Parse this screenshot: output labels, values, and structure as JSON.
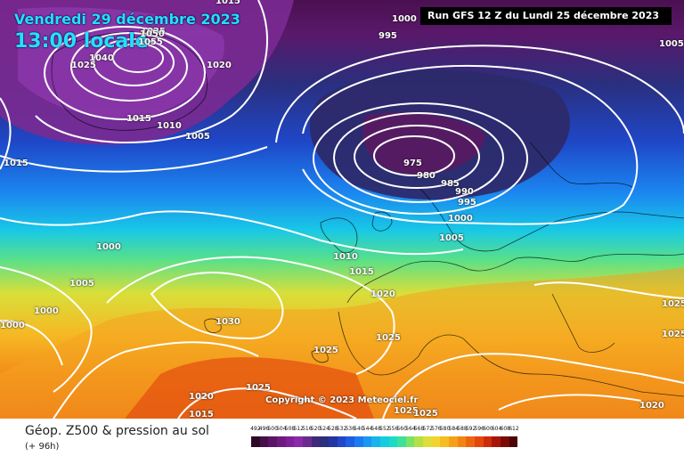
{
  "header": {
    "date": "Vendredi 29 décembre 2023",
    "time": "13:00 locale",
    "run": "Run GFS 12 Z du Lundi 25 décembre 2023"
  },
  "copyright": "Copyright © 2023 Meteociel.fr",
  "legend": {
    "title": "Géop. Z500 & pression au sol",
    "subtitle": "(+ 96h)",
    "scale_ticks": [
      "492",
      "496",
      "500",
      "504",
      "508",
      "512",
      "516",
      "520",
      "524",
      "528",
      "532",
      "536",
      "540",
      "544",
      "548",
      "552",
      "556",
      "560",
      "564",
      "568",
      "572",
      "576",
      "580",
      "584",
      "588",
      "592",
      "596",
      "600",
      "604",
      "608",
      "612"
    ],
    "scale_colors": [
      "#2d0a26",
      "#46104a",
      "#5a1566",
      "#6e1a80",
      "#7e209a",
      "#8a2aa8",
      "#6a2a8e",
      "#3e2a78",
      "#2a2f7e",
      "#2236a0",
      "#1f47c8",
      "#1d5fe0",
      "#1c7af0",
      "#1b96f2",
      "#18b4ea",
      "#16cce0",
      "#18dcc8",
      "#3ee09a",
      "#7ae266",
      "#b2e046",
      "#dedd3a",
      "#f2d42e",
      "#f6bc22",
      "#f6a01a",
      "#f28414",
      "#ec6610",
      "#e2480e",
      "#cc2c0c",
      "#a8160a",
      "#7a0a08",
      "#4a0404"
    ]
  },
  "pressure_labels": [
    {
      "name": "1015-a",
      "text": "1015"
    },
    {
      "name": "1000-top",
      "text": "1000"
    },
    {
      "name": "995-top",
      "text": "995"
    },
    {
      "name": "1005-right",
      "text": "1005"
    },
    {
      "name": "1035-a",
      "text": "1035"
    },
    {
      "name": "1040",
      "text": "1040"
    },
    {
      "name": "1050",
      "text": "1050"
    },
    {
      "name": "1055",
      "text": "1055"
    },
    {
      "name": "1025-a",
      "text": "1025"
    },
    {
      "name": "1020-a",
      "text": "1020"
    },
    {
      "name": "1015-b",
      "text": "1015"
    },
    {
      "name": "1010-a",
      "text": "1010"
    },
    {
      "name": "1005-a",
      "text": "1005"
    },
    {
      "name": "975",
      "text": "975"
    },
    {
      "name": "980",
      "text": "980"
    },
    {
      "name": "985",
      "text": "985"
    },
    {
      "name": "990",
      "text": "990"
    },
    {
      "name": "995-b",
      "text": "995"
    },
    {
      "name": "1000-b",
      "text": "1000"
    },
    {
      "name": "1005-b",
      "text": "1005"
    },
    {
      "name": "1015-left",
      "text": "1015"
    },
    {
      "name": "1000-left",
      "text": "1000"
    },
    {
      "name": "1005-left",
      "text": "1005"
    },
    {
      "name": "1000-left2",
      "text": "1000"
    },
    {
      "name": "1000-far-left",
      "text": "1000"
    },
    {
      "name": "1010-b",
      "text": "1010"
    },
    {
      "name": "1015-c",
      "text": "1015"
    },
    {
      "name": "1020-b",
      "text": "1020"
    },
    {
      "name": "1025-b",
      "text": "1025"
    },
    {
      "name": "1030",
      "text": "1030"
    },
    {
      "name": "1025-c",
      "text": "1025"
    },
    {
      "name": "1025-d",
      "text": "1025"
    },
    {
      "name": "1020-c",
      "text": "1020"
    },
    {
      "name": "1015-d",
      "text": "1015"
    },
    {
      "name": "1025-e",
      "text": "1025"
    },
    {
      "name": "1025-f",
      "text": "1025"
    },
    {
      "name": "1025-right",
      "text": "1025"
    },
    {
      "name": "1025-right2",
      "text": "1025"
    },
    {
      "name": "1020-right",
      "text": "1020"
    }
  ]
}
